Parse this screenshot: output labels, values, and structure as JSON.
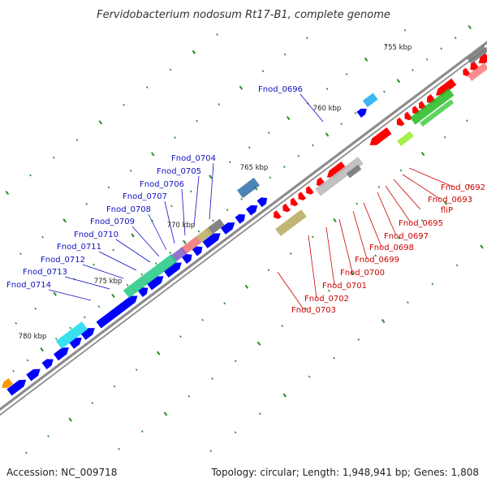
{
  "title": "Fervidobacterium nodosum Rt17-B1, complete genome",
  "footer": {
    "accession": "Accession: NC_009718",
    "topology": "Topology: circular; Length: 1,948,941 bp; Genes: 1,808"
  },
  "colors": {
    "backbone": "#8c8c8c",
    "plus_strand": "#ff0000",
    "minus_strand": "#0000ff",
    "tick": "#2e8b2e",
    "plus_label": "#cc0000",
    "minus_label": "#1010c0"
  },
  "position_labels": [
    "755 kbp",
    "760 kbp",
    "765 kbp",
    "770 kbp",
    "775 kbp",
    "780 kbp"
  ],
  "plus_strand_genes": [
    "Fnod_0692",
    "Fnod_0693",
    "fliP",
    "Fnod_0695",
    "Fnod_0697",
    "Fnod_0698",
    "Fnod_0699",
    "Fnod_0700",
    "Fnod_0701",
    "Fnod_0702",
    "Fnod_0703"
  ],
  "minus_strand_genes": [
    "Fnod_0696",
    "Fnod_0704",
    "Fnod_0705",
    "Fnod_0706",
    "Fnod_0707",
    "Fnod_0708",
    "Fnod_0709",
    "Fnod_0710",
    "Fnod_0711",
    "Fnod_0712",
    "Fnod_0713",
    "Fnod_0714"
  ]
}
